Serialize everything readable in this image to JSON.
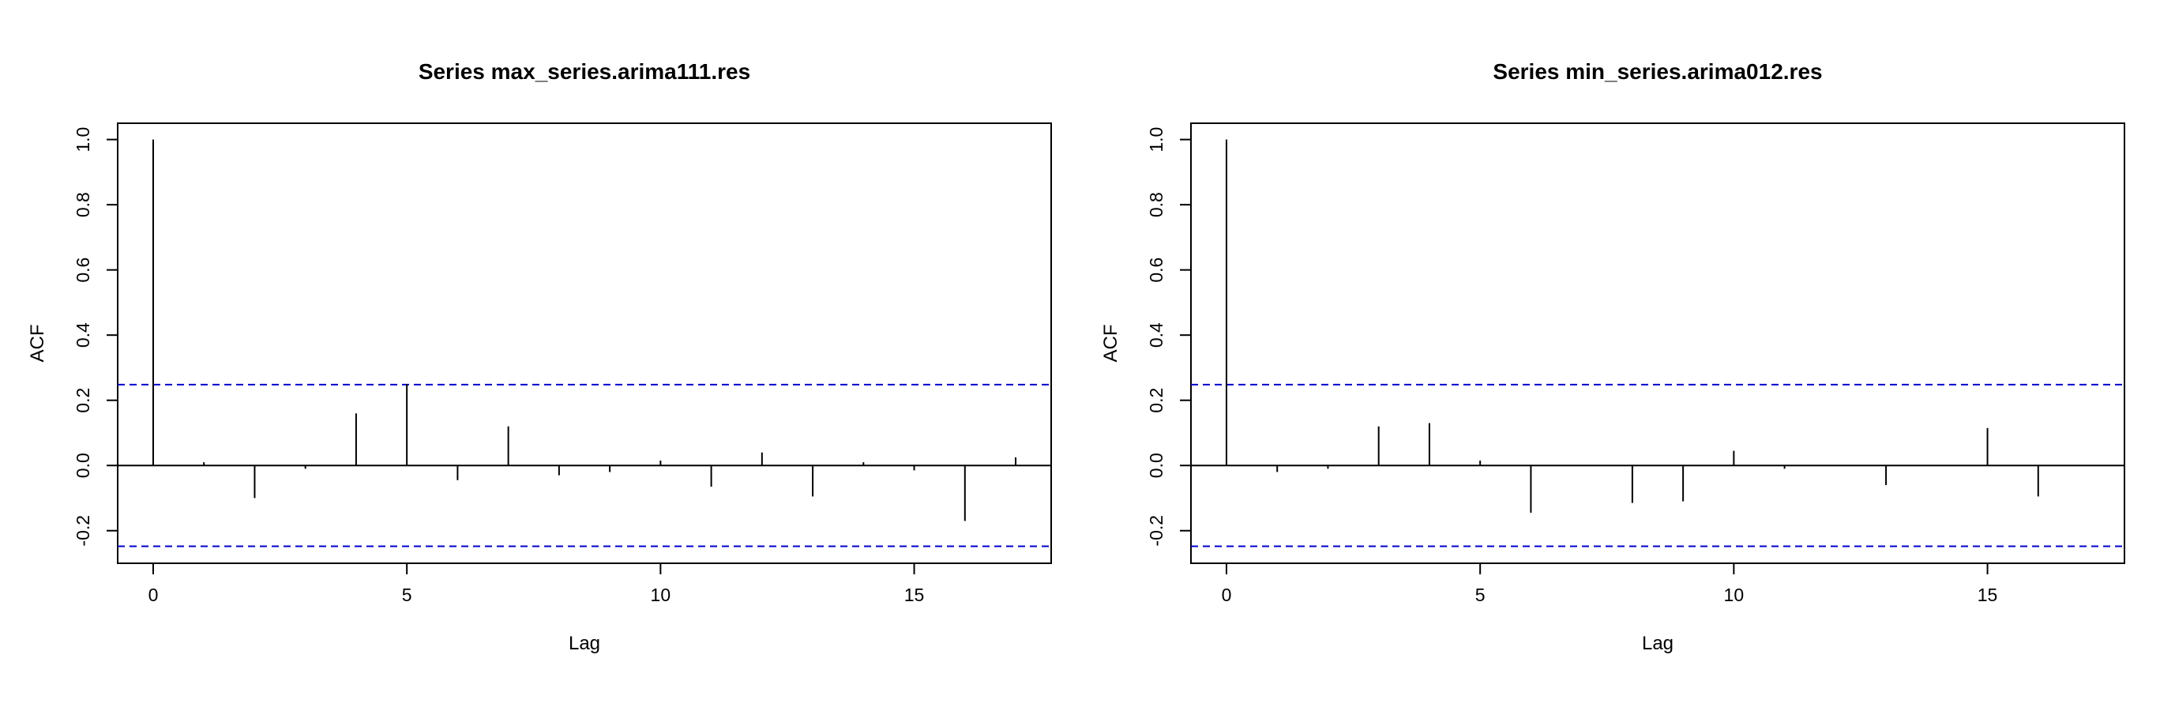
{
  "chart_data": [
    {
      "type": "bar",
      "title": "Series  max_series.arima111.res",
      "xlabel": "Lag",
      "ylabel": "ACF",
      "xlim": [
        -0.7,
        17.7
      ],
      "ylim": [
        -0.3,
        1.05
      ],
      "x_ticks": [
        0,
        5,
        10,
        15
      ],
      "y_ticks": [
        -0.2,
        0.0,
        0.2,
        0.4,
        0.6,
        0.8,
        1.0
      ],
      "x_tick_labels": [
        "0",
        "5",
        "10",
        "15"
      ],
      "y_tick_labels": [
        "-0.2",
        "0.0",
        "0.2",
        "0.4",
        "0.6",
        "0.8",
        "1.0"
      ],
      "lags": [
        0,
        1,
        2,
        3,
        4,
        5,
        6,
        7,
        8,
        9,
        10,
        11,
        12,
        13,
        14,
        15,
        16,
        17
      ],
      "values": [
        1.0,
        0.01,
        -0.1,
        -0.01,
        0.16,
        0.25,
        -0.045,
        0.12,
        -0.03,
        -0.02,
        0.015,
        -0.065,
        0.04,
        -0.095,
        0.01,
        -0.015,
        -0.17,
        0.025
      ],
      "confidence_band": 0.248,
      "band_color": "#0000cc"
    },
    {
      "type": "bar",
      "title": "Series  min_series.arima012.res",
      "xlabel": "Lag",
      "ylabel": "ACF",
      "xlim": [
        -0.7,
        17.7
      ],
      "ylim": [
        -0.3,
        1.05
      ],
      "x_ticks": [
        0,
        5,
        10,
        15
      ],
      "y_ticks": [
        -0.2,
        0.0,
        0.2,
        0.4,
        0.6,
        0.8,
        1.0
      ],
      "x_tick_labels": [
        "0",
        "5",
        "10",
        "15"
      ],
      "y_tick_labels": [
        "-0.2",
        "0.0",
        "0.2",
        "0.4",
        "0.6",
        "0.8",
        "1.0"
      ],
      "lags": [
        0,
        1,
        2,
        3,
        4,
        5,
        6,
        7,
        8,
        9,
        10,
        11,
        12,
        13,
        14,
        15,
        16
      ],
      "values": [
        1.0,
        -0.02,
        -0.01,
        0.12,
        0.13,
        0.015,
        -0.145,
        0.0,
        -0.115,
        -0.11,
        0.045,
        -0.01,
        0.0,
        -0.06,
        0.0,
        0.115,
        -0.095
      ],
      "confidence_band": 0.248,
      "band_color": "#0000cc"
    }
  ]
}
